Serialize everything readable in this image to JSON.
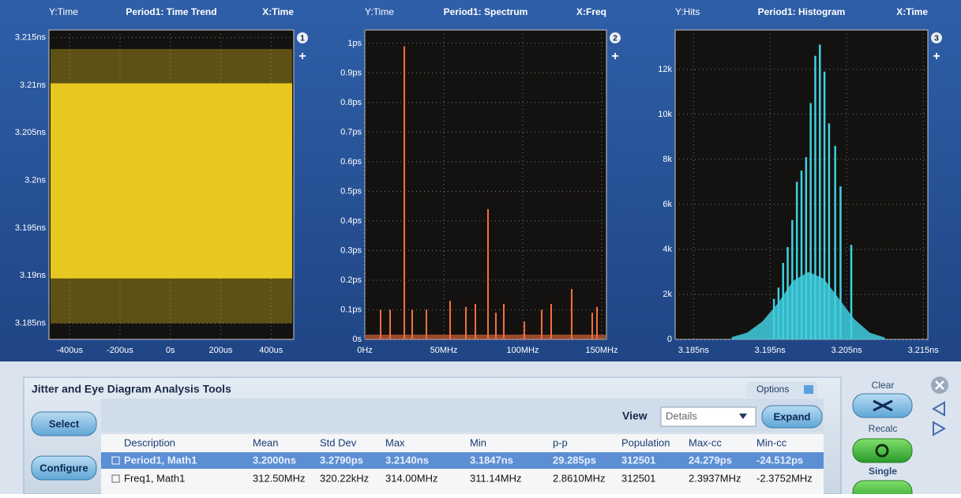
{
  "plots": [
    {
      "type": "band",
      "y_label": "Y:Time",
      "title": "Period1: Time Trend",
      "x_label": "X:Time",
      "badge": "1",
      "xlim": [
        -482,
        490
      ],
      "xticks": [
        {
          "value": -400,
          "label": "-400us"
        },
        {
          "value": -200,
          "label": "-200us"
        },
        {
          "value": 0,
          "label": "0s"
        },
        {
          "value": 200,
          "label": "200us"
        },
        {
          "value": 400,
          "label": "400us"
        }
      ],
      "ylim": [
        3.1833,
        3.2158
      ],
      "yticks": [
        {
          "value": 3.185,
          "label": "3.185ns"
        },
        {
          "value": 3.19,
          "label": "3.19ns"
        },
        {
          "value": 3.195,
          "label": "3.195ns"
        },
        {
          "value": 3.2,
          "label": "3.2ns"
        },
        {
          "value": 3.205,
          "label": "3.205ns"
        },
        {
          "value": 3.21,
          "label": "3.21ns"
        },
        {
          "value": 3.215,
          "label": "3.215ns"
        }
      ],
      "band": [
        3.1897,
        3.2102
      ],
      "extremes": [
        3.185,
        3.2138
      ],
      "color": "#e8c820"
    },
    {
      "type": "spikes",
      "y_label": "Y:Time",
      "title": "Period1: Spectrum",
      "x_label": "X:Freq",
      "badge": "2",
      "xlim": [
        0,
        153
      ],
      "xticks": [
        {
          "value": 0,
          "label": "0Hz"
        },
        {
          "value": 50,
          "label": "50MHz"
        },
        {
          "value": 100,
          "label": "100MHz"
        },
        {
          "value": 150,
          "label": "150MHz"
        }
      ],
      "ylim": [
        0,
        1.045
      ],
      "yticks": [
        {
          "value": 0,
          "label": "0s"
        },
        {
          "value": 0.1,
          "label": "0.1ps"
        },
        {
          "value": 0.2,
          "label": "0.2ps"
        },
        {
          "value": 0.3,
          "label": "0.3ps"
        },
        {
          "value": 0.4,
          "label": "0.4ps"
        },
        {
          "value": 0.5,
          "label": "0.5ps"
        },
        {
          "value": 0.6,
          "label": "0.6ps"
        },
        {
          "value": 0.7,
          "label": "0.7ps"
        },
        {
          "value": 0.8,
          "label": "0.8ps"
        },
        {
          "value": 0.9,
          "label": "0.9ps"
        },
        {
          "value": 1,
          "label": "1ps"
        }
      ],
      "x": [
        10,
        16,
        25,
        30,
        39,
        54,
        64,
        70,
        78,
        83,
        88,
        101,
        112,
        118,
        131,
        144,
        147
      ],
      "values": [
        0.1,
        0.1,
        0.99,
        0.1,
        0.1,
        0.13,
        0.11,
        0.12,
        0.44,
        0.09,
        0.12,
        0.06,
        0.1,
        0.12,
        0.17,
        0.09,
        0.11
      ],
      "color": "#f07040"
    },
    {
      "type": "histogram",
      "y_label": "Y:Hits",
      "title": "Period1: Histogram",
      "x_label": "X:Time",
      "badge": "3",
      "xlim": [
        3.1826,
        3.2156
      ],
      "xticks": [
        {
          "value": 3.185,
          "label": "3.185ns"
        },
        {
          "value": 3.195,
          "label": "3.195ns"
        },
        {
          "value": 3.205,
          "label": "3.205ns"
        },
        {
          "value": 3.215,
          "label": "3.215ns"
        }
      ],
      "ylim": [
        0,
        13750
      ],
      "yticks": [
        0,
        {
          "value": 2000,
          "label": "2k"
        },
        {
          "value": 4000,
          "label": "4k"
        },
        {
          "value": 6000,
          "label": "6k"
        },
        {
          "value": 8000,
          "label": "8k"
        },
        {
          "value": 10000,
          "label": "10k"
        },
        {
          "value": 12000,
          "label": "12k"
        }
      ],
      "base_x": [
        3.19,
        3.192,
        3.194,
        3.196,
        3.198,
        3.2,
        3.202,
        3.204,
        3.206,
        3.208,
        3.21
      ],
      "base_values": [
        100,
        300,
        800,
        1600,
        2600,
        3000,
        2700,
        1800,
        900,
        300,
        80
      ],
      "x": [
        3.1955,
        3.1961,
        3.1967,
        3.1973,
        3.1979,
        3.1985,
        3.1991,
        3.1997,
        3.2003,
        3.2009,
        3.2015,
        3.2021,
        3.2027,
        3.2035,
        3.2042,
        3.2056
      ],
      "values": [
        1800,
        2300,
        3400,
        4100,
        5300,
        7000,
        7500,
        8100,
        10500,
        12600,
        13100,
        11900,
        9600,
        8600,
        6800,
        4200
      ],
      "color": "#40d0e0"
    }
  ],
  "panel": {
    "title": "Jitter and Eye Diagram Analysis Tools",
    "options": "Options",
    "select": "Select",
    "configure": "Configure",
    "view": "View",
    "view_value": "Details",
    "expand": "Expand",
    "columns": [
      "Description",
      "Mean",
      "Std Dev",
      "Max",
      "Min",
      "p-p",
      "Population",
      "Max-cc",
      "Min-cc"
    ],
    "rows": [
      [
        "Period1, Math1",
        "3.2000ns",
        "3.2790ps",
        "3.2140ns",
        "3.1847ns",
        "29.285ps",
        "312501",
        "24.279ps",
        "-24.512ps"
      ],
      [
        "Freq1, Math1",
        "312.50MHz",
        "320.22kHz",
        "314.00MHz",
        "311.14MHz",
        "2.8610MHz",
        "312501",
        "2.3937MHz",
        "-2.3752MHz"
      ]
    ]
  },
  "side": {
    "clear": "Clear",
    "recalc": "Recalc",
    "single": "Single"
  }
}
